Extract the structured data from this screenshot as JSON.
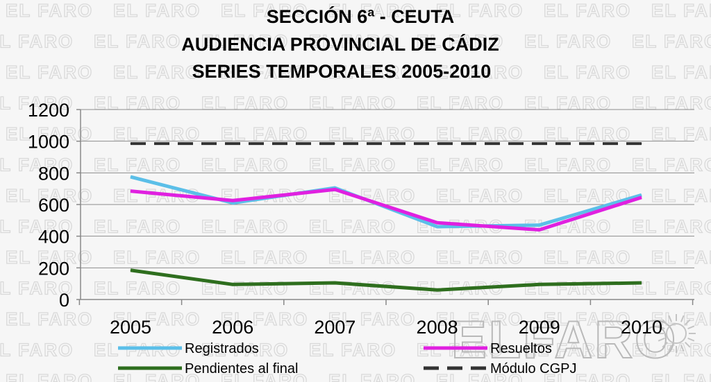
{
  "chart_data": {
    "type": "line",
    "title_lines": [
      "SECCIÓN 6ª - CEUTA",
      "AUDIENCIA PROVINCIAL DE CÁDIZ",
      "SERIES TEMPORALES 2005-2010"
    ],
    "categories": [
      "2005",
      "2006",
      "2007",
      "2008",
      "2009",
      "2010"
    ],
    "ylim": [
      0,
      1200
    ],
    "yticks": [
      "0",
      "200",
      "400",
      "600",
      "800",
      "1000",
      "1200"
    ],
    "grid": true,
    "legend_position": "bottom",
    "series": [
      {
        "name": "Registrados",
        "color": "#5bbfe8",
        "style": "solid",
        "values": [
          775,
          610,
          705,
          460,
          470,
          660
        ]
      },
      {
        "name": "Resueltos",
        "color": "#e020e0",
        "style": "solid",
        "values": [
          685,
          625,
          695,
          485,
          440,
          645
        ]
      },
      {
        "name": "Pendientes al final",
        "color": "#2e6e1e",
        "style": "solid",
        "values": [
          185,
          95,
          105,
          60,
          95,
          105
        ]
      },
      {
        "name": "Módulo CGPJ",
        "color": "#333333",
        "style": "dashed",
        "values": [
          985,
          985,
          985,
          985,
          985,
          985
        ]
      }
    ]
  },
  "watermark": {
    "text": "EL FARO",
    "logo_text": "ELFARO"
  }
}
